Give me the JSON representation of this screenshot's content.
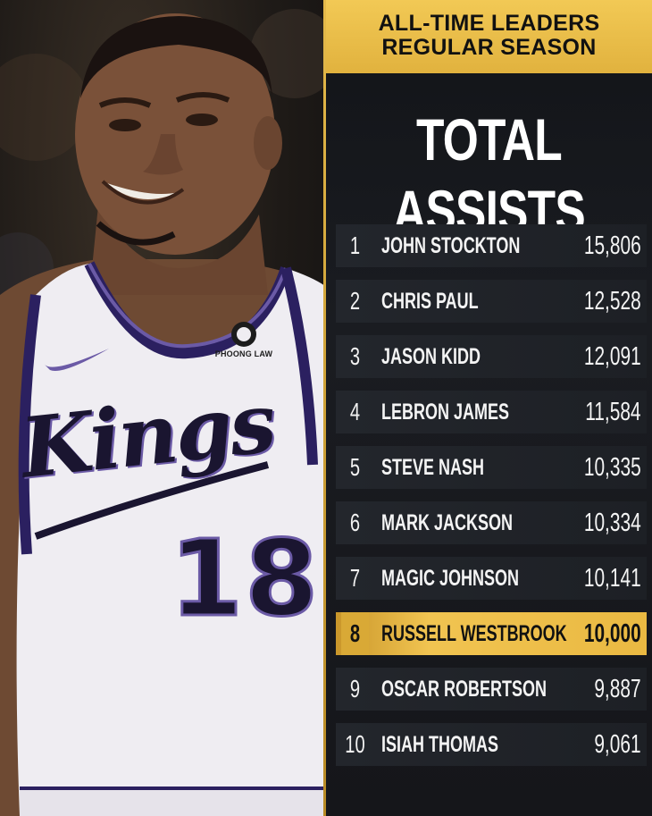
{
  "photo": {
    "sponsor_text": "PHOONG LAW",
    "team_script": "Kings",
    "jersey_number": "18"
  },
  "header": {
    "line1": "ALL-TIME LEADERS",
    "line2": "REGULAR SEASON"
  },
  "stat_title": "TOTAL ASSISTS",
  "colors": {
    "gold": "#f2c955",
    "panel_bg": "#15161a",
    "row_bg": "#23262c",
    "jersey_purple": "#6b5aa6"
  },
  "leaders": [
    {
      "rank": "1",
      "name": "JOHN STOCKTON",
      "value": "15,806",
      "highlight": false
    },
    {
      "rank": "2",
      "name": "CHRIS PAUL",
      "value": "12,528",
      "highlight": false
    },
    {
      "rank": "3",
      "name": "JASON KIDD",
      "value": "12,091",
      "highlight": false
    },
    {
      "rank": "4",
      "name": "LEBRON JAMES",
      "value": "11,584",
      "highlight": false
    },
    {
      "rank": "5",
      "name": "STEVE NASH",
      "value": "10,335",
      "highlight": false
    },
    {
      "rank": "6",
      "name": "MARK JACKSON",
      "value": "10,334",
      "highlight": false
    },
    {
      "rank": "7",
      "name": "MAGIC JOHNSON",
      "value": "10,141",
      "highlight": false
    },
    {
      "rank": "8",
      "name": "RUSSELL WESTBROOK",
      "value": "10,000",
      "highlight": true
    },
    {
      "rank": "9",
      "name": "OSCAR ROBERTSON",
      "value": "9,887",
      "highlight": false
    },
    {
      "rank": "10",
      "name": "ISIAH THOMAS",
      "value": "9,061",
      "highlight": false
    }
  ]
}
